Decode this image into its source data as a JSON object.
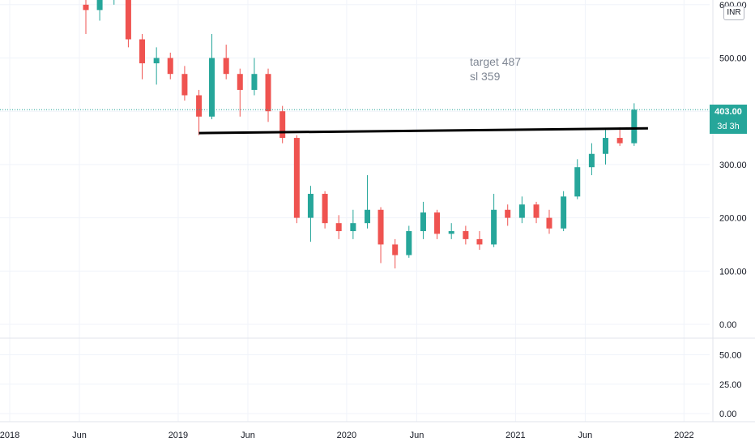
{
  "chart_data": [
    {
      "type": "candlestick",
      "title": "",
      "annotations": [
        "target 487",
        "sl 359"
      ],
      "currency": "INR",
      "last_price": "403.00",
      "countdown": "3d 3h",
      "ylim": [
        0,
        620
      ],
      "yticks": [
        "0.00",
        "100.00",
        "200.00",
        "300.00",
        "400.00",
        "500.00",
        "600.00"
      ],
      "xticks": [
        "2018",
        "Jun",
        "2019",
        "Jun",
        "2020",
        "Jun",
        "2021",
        "Jun",
        "2022"
      ],
      "support_line": {
        "from": "2019-02",
        "to": "2021-10",
        "y_start": 359,
        "y_end": 368
      },
      "colors": {
        "up": "#26a69a",
        "down": "#ef5350",
        "line": "#000000"
      },
      "candles": [
        {
          "t": "2018-06",
          "o": 600,
          "h": 645,
          "l": 545,
          "c": 590
        },
        {
          "t": "2018-07",
          "o": 590,
          "h": 650,
          "l": 570,
          "c": 615
        },
        {
          "t": "2018-08",
          "o": 612,
          "h": 650,
          "l": 600,
          "c": 630
        },
        {
          "t": "2018-09",
          "o": 632,
          "h": 650,
          "l": 520,
          "c": 535
        },
        {
          "t": "2018-10",
          "o": 535,
          "h": 545,
          "l": 460,
          "c": 490
        },
        {
          "t": "2018-11",
          "o": 490,
          "h": 520,
          "l": 450,
          "c": 500
        },
        {
          "t": "2018-12",
          "o": 500,
          "h": 510,
          "l": 460,
          "c": 470
        },
        {
          "t": "2019-01",
          "o": 470,
          "h": 485,
          "l": 420,
          "c": 430
        },
        {
          "t": "2019-02",
          "o": 430,
          "h": 440,
          "l": 355,
          "c": 390
        },
        {
          "t": "2019-03",
          "o": 390,
          "h": 545,
          "l": 385,
          "c": 500
        },
        {
          "t": "2019-04",
          "o": 500,
          "h": 525,
          "l": 460,
          "c": 470
        },
        {
          "t": "2019-05",
          "o": 470,
          "h": 480,
          "l": 390,
          "c": 440
        },
        {
          "t": "2019-06",
          "o": 440,
          "h": 500,
          "l": 430,
          "c": 470
        },
        {
          "t": "2019-07",
          "o": 470,
          "h": 480,
          "l": 380,
          "c": 400
        },
        {
          "t": "2019-08",
          "o": 400,
          "h": 410,
          "l": 340,
          "c": 350
        },
        {
          "t": "2019-09",
          "o": 350,
          "h": 355,
          "l": 190,
          "c": 200
        },
        {
          "t": "2019-10",
          "o": 200,
          "h": 260,
          "l": 155,
          "c": 245
        },
        {
          "t": "2019-11",
          "o": 245,
          "h": 250,
          "l": 180,
          "c": 190
        },
        {
          "t": "2019-12",
          "o": 190,
          "h": 205,
          "l": 160,
          "c": 175
        },
        {
          "t": "2020-01",
          "o": 175,
          "h": 215,
          "l": 160,
          "c": 190
        },
        {
          "t": "2020-02",
          "o": 190,
          "h": 280,
          "l": 180,
          "c": 215
        },
        {
          "t": "2020-03",
          "o": 215,
          "h": 220,
          "l": 115,
          "c": 150
        },
        {
          "t": "2020-04",
          "o": 150,
          "h": 160,
          "l": 105,
          "c": 130
        },
        {
          "t": "2020-05",
          "o": 130,
          "h": 185,
          "l": 125,
          "c": 175
        },
        {
          "t": "2020-06",
          "o": 175,
          "h": 230,
          "l": 160,
          "c": 210
        },
        {
          "t": "2020-07",
          "o": 210,
          "h": 215,
          "l": 160,
          "c": 170
        },
        {
          "t": "2020-08",
          "o": 170,
          "h": 190,
          "l": 160,
          "c": 175
        },
        {
          "t": "2020-09",
          "o": 175,
          "h": 185,
          "l": 150,
          "c": 160
        },
        {
          "t": "2020-10",
          "o": 160,
          "h": 175,
          "l": 140,
          "c": 150
        },
        {
          "t": "2020-11",
          "o": 150,
          "h": 245,
          "l": 145,
          "c": 215
        },
        {
          "t": "2020-12",
          "o": 215,
          "h": 225,
          "l": 185,
          "c": 200
        },
        {
          "t": "2021-01",
          "o": 200,
          "h": 240,
          "l": 190,
          "c": 225
        },
        {
          "t": "2021-02",
          "o": 225,
          "h": 230,
          "l": 190,
          "c": 200
        },
        {
          "t": "2021-03",
          "o": 200,
          "h": 215,
          "l": 170,
          "c": 180
        },
        {
          "t": "2021-04",
          "o": 180,
          "h": 250,
          "l": 175,
          "c": 240
        },
        {
          "t": "2021-05",
          "o": 240,
          "h": 310,
          "l": 235,
          "c": 295
        },
        {
          "t": "2021-06",
          "o": 295,
          "h": 340,
          "l": 280,
          "c": 320
        },
        {
          "t": "2021-07",
          "o": 320,
          "h": 365,
          "l": 300,
          "c": 350
        },
        {
          "t": "2021-08",
          "o": 350,
          "h": 370,
          "l": 335,
          "c": 340
        },
        {
          "t": "2021-09",
          "o": 340,
          "h": 415,
          "l": 335,
          "c": 403
        }
      ],
      "volume_panel": {
        "yticks": [
          "0.00",
          "25.00",
          "50.00"
        ],
        "ylim": [
          0,
          60
        ]
      }
    }
  ]
}
